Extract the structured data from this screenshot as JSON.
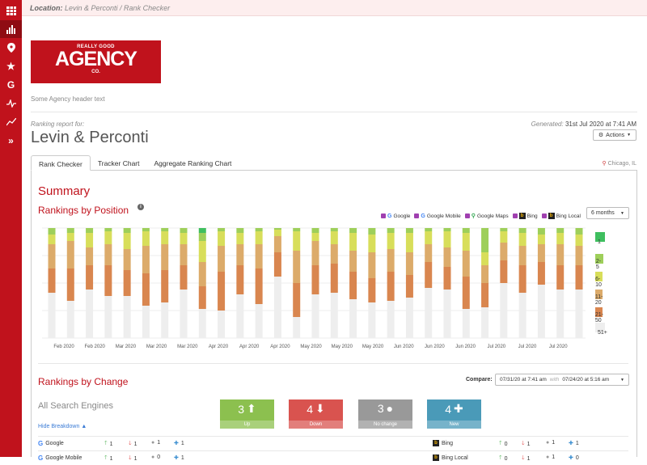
{
  "rail": {
    "items": [
      "grid",
      "bar-chart",
      "pin",
      "star",
      "google",
      "activity",
      "trend",
      "expand"
    ]
  },
  "breadcrumb": {
    "location_label": "Location:",
    "path": "Levin & Perconti  /  Rank Checker"
  },
  "logo": {
    "line1": "REALLY GOOD",
    "line2": "AGENCY",
    "line3": "CO."
  },
  "header_text": "Some Agency header text",
  "report": {
    "for_label": "Ranking report for:",
    "title": "Levin & Perconti",
    "generated_label": "Generated:",
    "generated_value": "31st Jul 2020 at 7:41 AM",
    "actions_label": "Actions"
  },
  "tabs": [
    "Rank Checker",
    "Tracker Chart",
    "Aggregate Ranking Chart"
  ],
  "location": "Chicago, IL",
  "summary_title": "Summary",
  "rankings_by_position": {
    "title": "Rankings by Position",
    "engines": [
      "Google",
      "Google Mobile",
      "Google Maps",
      "Bing",
      "Bing Local"
    ],
    "range": "6 months"
  },
  "chart_data": {
    "type": "bar",
    "stacked": true,
    "categories": [
      "Feb 2020",
      "Feb 2020",
      "Mar 2020",
      "Mar 2020",
      "Mar 2020",
      "Apr 2020",
      "Apr 2020",
      "Apr 2020",
      "May 2020",
      "May 2020",
      "May 2020",
      "Jun 2020",
      "Jun 2020",
      "Jun 2020",
      "Jul 2020",
      "Jul 2020",
      "Jul 2020"
    ],
    "tick_slots": [
      0,
      1,
      2,
      3,
      4,
      5,
      6,
      7,
      8,
      9,
      10,
      11,
      12,
      13,
      14,
      15,
      16
    ],
    "legend": [
      "1",
      "2-5",
      "6-10",
      "11-20",
      "21-50",
      "51+"
    ],
    "colors": {
      "1": "#3fbf5f",
      "2-5": "#9ecf5a",
      "6-10": "#d8de5a",
      "11-20": "#dcab6a",
      "21-50": "#d9864f",
      "51+": "#eeeeee"
    },
    "bars": [
      {
        "1": 0,
        "2-5": 8,
        "6-10": 12,
        "11-20": 30,
        "21-50": 30,
        "51+": 56
      },
      {
        "1": 0,
        "2-5": 6,
        "6-10": 10,
        "11-20": 34,
        "21-50": 40,
        "51+": 46
      },
      {
        "1": 0,
        "2-5": 6,
        "6-10": 18,
        "11-20": 22,
        "21-50": 30,
        "51+": 60
      },
      {
        "1": 0,
        "2-5": 4,
        "6-10": 16,
        "11-20": 26,
        "21-50": 38,
        "51+": 52
      },
      {
        "1": 0,
        "2-5": 6,
        "6-10": 20,
        "11-20": 26,
        "21-50": 32,
        "51+": 52
      },
      {
        "1": 0,
        "2-5": 4,
        "6-10": 18,
        "11-20": 34,
        "21-50": 40,
        "51+": 40
      },
      {
        "1": 0,
        "2-5": 4,
        "6-10": 16,
        "11-20": 32,
        "21-50": 40,
        "51+": 44
      },
      {
        "1": 0,
        "2-5": 6,
        "6-10": 14,
        "11-20": 26,
        "21-50": 30,
        "51+": 60
      },
      {
        "1": 6,
        "2-5": 10,
        "6-10": 26,
        "11-20": 30,
        "21-50": 28,
        "51+": 36
      },
      {
        "1": 0,
        "2-5": 4,
        "6-10": 18,
        "11-20": 32,
        "21-50": 48,
        "51+": 34
      },
      {
        "1": 0,
        "2-5": 6,
        "6-10": 14,
        "11-20": 26,
        "21-50": 36,
        "51+": 54
      },
      {
        "1": 0,
        "2-5": 4,
        "6-10": 16,
        "11-20": 30,
        "21-50": 44,
        "51+": 42
      },
      {
        "1": 0,
        "2-5": 2,
        "6-10": 8,
        "11-20": 20,
        "21-50": 30,
        "51+": 76
      },
      {
        "1": 0,
        "2-5": 4,
        "6-10": 24,
        "11-20": 40,
        "21-50": 42,
        "51+": 26
      },
      {
        "1": 0,
        "2-5": 6,
        "6-10": 10,
        "11-20": 30,
        "21-50": 36,
        "51+": 54
      },
      {
        "1": 0,
        "2-5": 4,
        "6-10": 16,
        "11-20": 24,
        "21-50": 36,
        "51+": 56
      },
      {
        "1": 0,
        "2-5": 6,
        "6-10": 22,
        "11-20": 26,
        "21-50": 34,
        "51+": 48
      },
      {
        "1": 0,
        "2-5": 8,
        "6-10": 22,
        "11-20": 32,
        "21-50": 30,
        "51+": 44
      },
      {
        "1": 0,
        "2-5": 6,
        "6-10": 20,
        "11-20": 28,
        "21-50": 36,
        "51+": 46
      },
      {
        "1": 0,
        "2-5": 6,
        "6-10": 24,
        "11-20": 28,
        "21-50": 28,
        "51+": 50
      },
      {
        "1": 0,
        "2-5": 4,
        "6-10": 16,
        "11-20": 22,
        "21-50": 32,
        "51+": 62
      },
      {
        "1": 0,
        "2-5": 4,
        "6-10": 20,
        "11-20": 24,
        "21-50": 28,
        "51+": 60
      },
      {
        "1": 0,
        "2-5": 6,
        "6-10": 22,
        "11-20": 32,
        "21-50": 40,
        "51+": 36
      },
      {
        "1": 0,
        "2-5": 30,
        "6-10": 16,
        "11-20": 22,
        "21-50": 30,
        "51+": 38
      },
      {
        "1": 0,
        "2-5": 4,
        "6-10": 14,
        "11-20": 22,
        "21-50": 28,
        "51+": 68
      },
      {
        "1": 0,
        "2-5": 6,
        "6-10": 16,
        "11-20": 24,
        "21-50": 34,
        "51+": 56
      },
      {
        "1": 0,
        "2-5": 8,
        "6-10": 12,
        "11-20": 22,
        "21-50": 28,
        "51+": 66
      },
      {
        "1": 0,
        "2-5": 6,
        "6-10": 14,
        "11-20": 26,
        "21-50": 30,
        "51+": 60
      },
      {
        "1": 0,
        "2-5": 8,
        "6-10": 14,
        "11-20": 24,
        "21-50": 30,
        "51+": 60
      }
    ]
  },
  "rankings_by_change": {
    "title": "Rankings by Change",
    "compare_label": "Compare:",
    "compare_from": "07/31/20 at 7:41 am",
    "compare_with": "with",
    "compare_to": "07/24/20 at 5:16 am",
    "section_title": "All Search Engines",
    "hide_breakdown": "Hide Breakdown",
    "cards": [
      {
        "value": "3",
        "label": "Up",
        "color": "#8cc04f"
      },
      {
        "value": "4",
        "label": "Down",
        "color": "#d9534f"
      },
      {
        "value": "3",
        "label": "No change",
        "color": "#999999"
      },
      {
        "value": "4",
        "label": "New",
        "color": "#4a9ab8"
      }
    ],
    "rows": [
      {
        "engine": "Google",
        "up": "1",
        "down": "1",
        "same": "1",
        "new": "1",
        "engine2": "Bing",
        "up2": "0",
        "down2": "1",
        "same2": "1",
        "new2": "1"
      },
      {
        "engine": "Google Mobile",
        "up": "1",
        "down": "1",
        "same": "0",
        "new": "1",
        "engine2": "Bing Local",
        "up2": "0",
        "down2": "1",
        "same2": "1",
        "new2": "0"
      }
    ]
  }
}
